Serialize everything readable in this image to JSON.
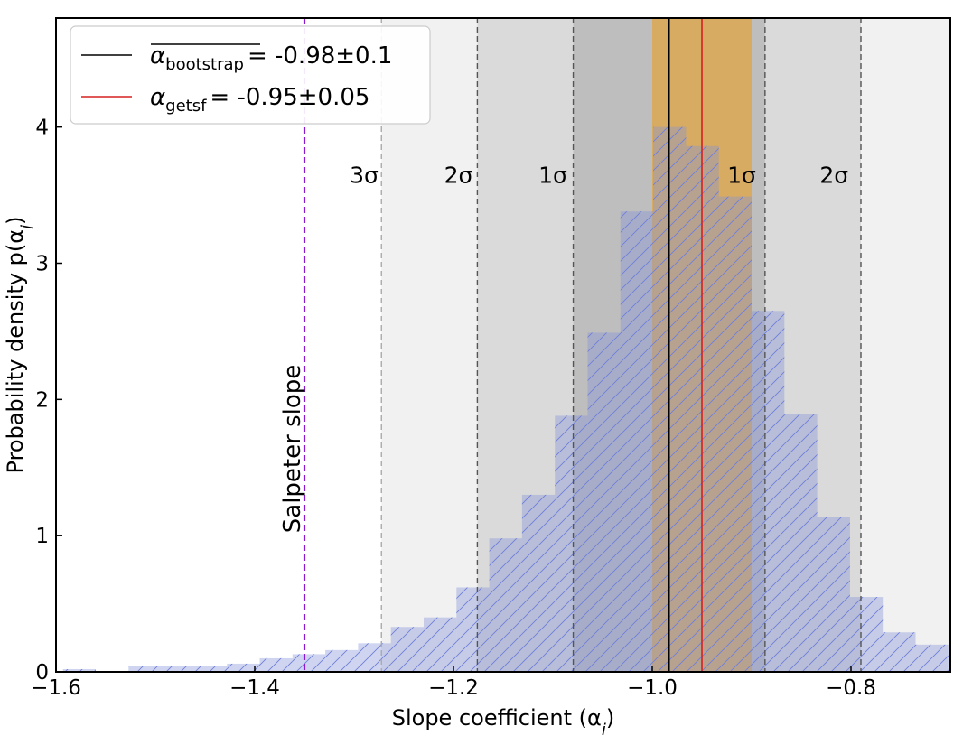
{
  "chart_data": {
    "type": "bar",
    "xlabel": "Slope coefficient (α",
    "xlabel_sub": "i",
    "xlabel_close": ")",
    "ylabel": "Probability density p(α",
    "ylabel_sub": "i",
    "ylabel_close": ")",
    "xlim": [
      -1.6,
      -0.7
    ],
    "ylim": [
      0,
      4.8
    ],
    "x_ticks": [
      -1.6,
      -1.4,
      -1.2,
      -1.0,
      -0.8
    ],
    "x_tick_labels": [
      "−1.6",
      "−1.4",
      "−1.2",
      "−1.0",
      "−0.8"
    ],
    "y_ticks": [
      0,
      1,
      2,
      3,
      4
    ],
    "y_tick_labels": [
      "0",
      "1",
      "2",
      "3",
      "4"
    ],
    "histogram": {
      "bin_edges": [
        -1.593,
        -1.56,
        -1.527,
        -1.494,
        -1.461,
        -1.428,
        -1.395,
        -1.362,
        -1.329,
        -1.296,
        -1.263,
        -1.23,
        -1.197,
        -1.164,
        -1.131,
        -1.098,
        -1.065,
        -1.032,
        -0.999,
        -0.966,
        -0.933,
        -0.9,
        -0.867,
        -0.834,
        -0.801,
        -0.768,
        -0.735,
        -0.702
      ],
      "values": [
        0.02,
        0.0,
        0.04,
        0.04,
        0.04,
        0.06,
        0.1,
        0.13,
        0.16,
        0.21,
        0.33,
        0.4,
        0.62,
        0.98,
        1.3,
        1.88,
        2.49,
        3.38,
        4.0,
        3.86,
        3.49,
        2.65,
        1.89,
        1.14,
        0.55,
        0.29,
        0.2
      ],
      "color": "#8090d8",
      "hatch_color": "#6f7fd8"
    },
    "bootstrap_mean": -0.983,
    "bootstrap_sigma": 0.0965,
    "getsf_value": -0.95,
    "getsf_range": [
      -1.0,
      -0.9
    ],
    "salpeter_slope": -1.35,
    "sigma_labels": [
      {
        "text": "3σ",
        "x": -1.29,
        "y": 3.65
      },
      {
        "text": "2σ",
        "x": -1.195,
        "y": 3.65
      },
      {
        "text": "1σ",
        "x": -1.1,
        "y": 3.65
      },
      {
        "text": "1σ",
        "x": -0.91,
        "y": 3.65
      },
      {
        "text": "2σ",
        "x": -0.817,
        "y": 3.65
      }
    ],
    "salpeter_label": "Salpeter slope",
    "legend_placement": "top-left",
    "legend": [
      {
        "symbol": "α",
        "subscript": "bootstrap",
        "overline": true,
        "text": "= -0.98±0.1",
        "color": "#000000"
      },
      {
        "symbol": "α",
        "subscript": "getsf",
        "overline": false,
        "text": "= -0.95±0.05",
        "color": "#d62020"
      }
    ],
    "colors": {
      "sigma3_band": "#f1f1f1",
      "sigma2_band": "#dadada",
      "sigma1_band": "#bebebe",
      "getsf_band": "#d8ab63",
      "bootstrap_line": "#000000",
      "getsf_line": "#d62020",
      "salpeter_line": "#8a1ad0",
      "sigma_dash": "#555555",
      "sigma3_dash": "#aaaaaa"
    },
    "grid": false
  }
}
